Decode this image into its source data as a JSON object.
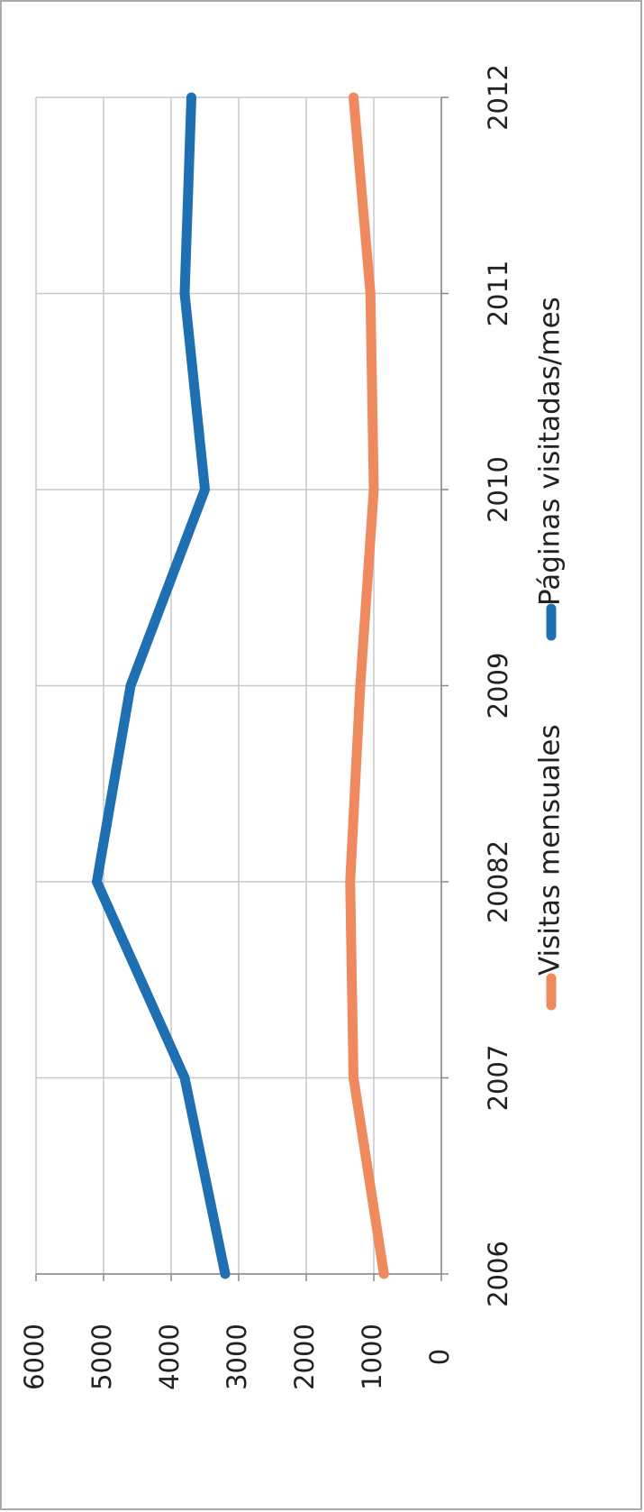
{
  "chart_data": {
    "type": "line",
    "categories": [
      "2006",
      "2007",
      "20082",
      "2009",
      "2010",
      "2011",
      "2012"
    ],
    "series": [
      {
        "name": "Visitas mensuales",
        "color": "#ef8a5e",
        "values": [
          850,
          1300,
          1350,
          1200,
          1000,
          1050,
          1300
        ]
      },
      {
        "name": "Páginas visitadas/mes",
        "color": "#1f6fb3",
        "values": [
          3200,
          3800,
          5100,
          4600,
          3500,
          3800,
          3700
        ]
      }
    ],
    "ylim": [
      0,
      6000
    ],
    "yticks": [
      0,
      1000,
      2000,
      3000,
      4000,
      5000,
      6000
    ],
    "grid": true,
    "legend": "bottom"
  }
}
